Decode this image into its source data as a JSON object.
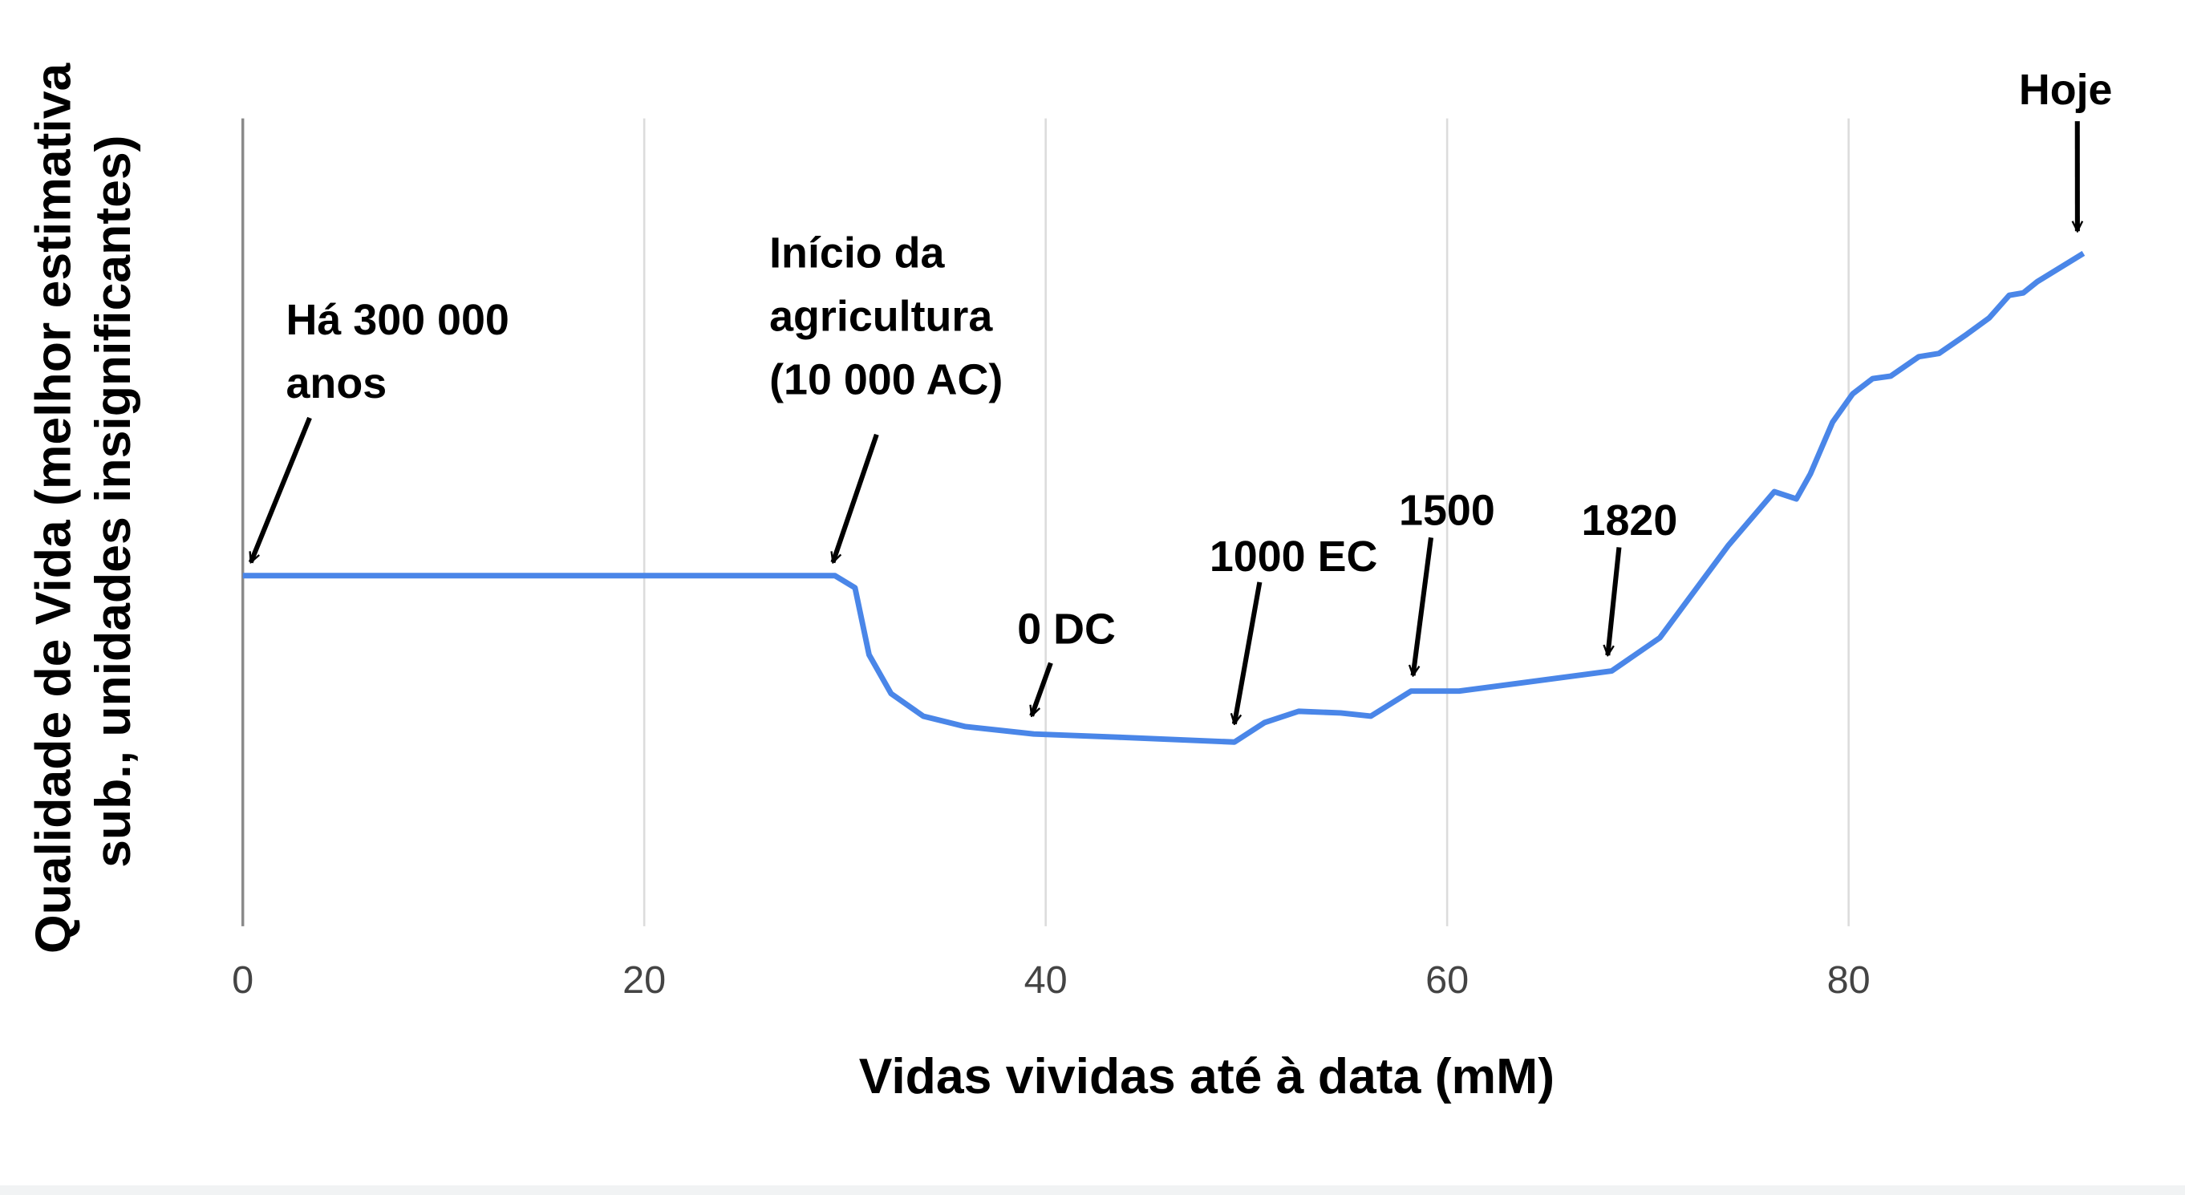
{
  "chart_data": {
    "type": "line",
    "title": "",
    "xlabel": "Vidas vividas até à data (mM)",
    "ylabel_lines": [
      "Qualidade de Vida (melhor estimativa",
      "sub., unidades insignificantes)"
    ],
    "xlim": [
      0,
      93
    ],
    "ylim": [
      0,
      100
    ],
    "xticks": [
      "0",
      "20",
      "40",
      "60",
      "80"
    ],
    "xtick_values": [
      0,
      20,
      40,
      60,
      80
    ],
    "grid": "vertical",
    "line_color": "#4a86e8",
    "series": [
      {
        "name": "Qualidade de Vida",
        "x": [
          0,
          29.5,
          30.5,
          31.2,
          32.3,
          33.9,
          36,
          39.4,
          43.6,
          49.4,
          50.9,
          52.6,
          54.7,
          56.2,
          58.2,
          60.6,
          68.2,
          70.6,
          74,
          76.3,
          77.4,
          78.1,
          79.2,
          80.2,
          81.2,
          82.1,
          83.5,
          84.5,
          85.9,
          87,
          88,
          88.7,
          89.4,
          91.7
        ],
        "y": [
          43.4,
          43.4,
          41.9,
          33.6,
          28.8,
          26,
          24.7,
          23.8,
          23.4,
          22.8,
          25.2,
          26.6,
          26.4,
          26,
          29.1,
          29.1,
          31.6,
          35.7,
          47.1,
          53.8,
          52.9,
          56,
          62.4,
          65.9,
          67.8,
          68.1,
          70.5,
          70.9,
          73.3,
          75.3,
          78.1,
          78.4,
          79.8,
          83.3
        ]
      }
    ],
    "annotations": [
      {
        "lines": [
          "Há 300 000",
          "anos"
        ],
        "x": 0.4,
        "y": 44
      },
      {
        "lines": [
          "Início da",
          "agricultura",
          "(10 000 AC)"
        ],
        "x": 29.4,
        "y": 44
      },
      {
        "lines": [
          "0 DC"
        ],
        "x": 39.3,
        "y": 25
      },
      {
        "lines": [
          "1000 EC"
        ],
        "x": 49.4,
        "y": 24
      },
      {
        "lines": [
          "1500"
        ],
        "x": 58.3,
        "y": 30
      },
      {
        "lines": [
          "1820"
        ],
        "x": 68,
        "y": 32.5
      },
      {
        "lines": [
          "Hoje"
        ],
        "x": 91.4,
        "y": 85
      }
    ]
  }
}
